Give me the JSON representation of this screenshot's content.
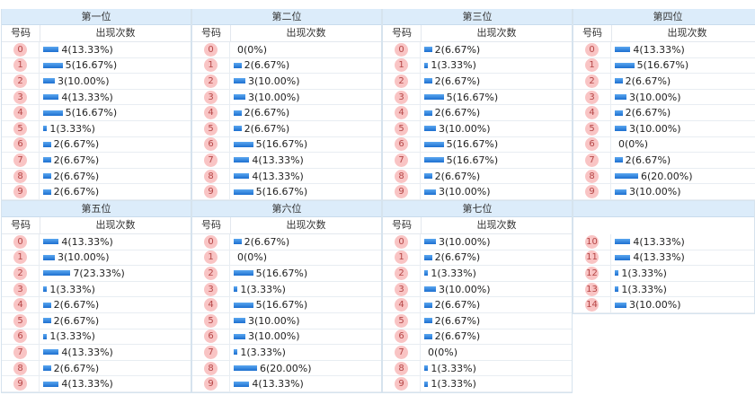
{
  "columns": {
    "number": "号码",
    "count": "出现次数"
  },
  "panels": [
    {
      "title": "第一位",
      "rows": [
        {
          "n": "0",
          "c": "4(13.33%)",
          "p": 13.33
        },
        {
          "n": "1",
          "c": "5(16.67%)",
          "p": 16.67
        },
        {
          "n": "2",
          "c": "3(10.00%)",
          "p": 10.0
        },
        {
          "n": "3",
          "c": "4(13.33%)",
          "p": 13.33
        },
        {
          "n": "4",
          "c": "5(16.67%)",
          "p": 16.67
        },
        {
          "n": "5",
          "c": "1(3.33%)",
          "p": 3.33
        },
        {
          "n": "6",
          "c": "2(6.67%)",
          "p": 6.67
        },
        {
          "n": "7",
          "c": "2(6.67%)",
          "p": 6.67
        },
        {
          "n": "8",
          "c": "2(6.67%)",
          "p": 6.67
        },
        {
          "n": "9",
          "c": "2(6.67%)",
          "p": 6.67
        }
      ]
    },
    {
      "title": "第二位",
      "rows": [
        {
          "n": "0",
          "c": "0(0%)",
          "p": 0
        },
        {
          "n": "1",
          "c": "2(6.67%)",
          "p": 6.67
        },
        {
          "n": "2",
          "c": "3(10.00%)",
          "p": 10.0
        },
        {
          "n": "3",
          "c": "3(10.00%)",
          "p": 10.0
        },
        {
          "n": "4",
          "c": "2(6.67%)",
          "p": 6.67
        },
        {
          "n": "5",
          "c": "2(6.67%)",
          "p": 6.67
        },
        {
          "n": "6",
          "c": "5(16.67%)",
          "p": 16.67
        },
        {
          "n": "7",
          "c": "4(13.33%)",
          "p": 13.33
        },
        {
          "n": "8",
          "c": "4(13.33%)",
          "p": 13.33
        },
        {
          "n": "9",
          "c": "5(16.67%)",
          "p": 16.67
        }
      ]
    },
    {
      "title": "第三位",
      "rows": [
        {
          "n": "0",
          "c": "2(6.67%)",
          "p": 6.67
        },
        {
          "n": "1",
          "c": "1(3.33%)",
          "p": 3.33
        },
        {
          "n": "2",
          "c": "2(6.67%)",
          "p": 6.67
        },
        {
          "n": "3",
          "c": "5(16.67%)",
          "p": 16.67
        },
        {
          "n": "4",
          "c": "2(6.67%)",
          "p": 6.67
        },
        {
          "n": "5",
          "c": "3(10.00%)",
          "p": 10.0
        },
        {
          "n": "6",
          "c": "5(16.67%)",
          "p": 16.67
        },
        {
          "n": "7",
          "c": "5(16.67%)",
          "p": 16.67
        },
        {
          "n": "8",
          "c": "2(6.67%)",
          "p": 6.67
        },
        {
          "n": "9",
          "c": "3(10.00%)",
          "p": 10.0
        }
      ]
    },
    {
      "title": "第四位",
      "rows": [
        {
          "n": "0",
          "c": "4(13.33%)",
          "p": 13.33
        },
        {
          "n": "1",
          "c": "5(16.67%)",
          "p": 16.67
        },
        {
          "n": "2",
          "c": "2(6.67%)",
          "p": 6.67
        },
        {
          "n": "3",
          "c": "3(10.00%)",
          "p": 10.0
        },
        {
          "n": "4",
          "c": "2(6.67%)",
          "p": 6.67
        },
        {
          "n": "5",
          "c": "3(10.00%)",
          "p": 10.0
        },
        {
          "n": "6",
          "c": "0(0%)",
          "p": 0
        },
        {
          "n": "7",
          "c": "2(6.67%)",
          "p": 6.67
        },
        {
          "n": "8",
          "c": "6(20.00%)",
          "p": 20.0
        },
        {
          "n": "9",
          "c": "3(10.00%)",
          "p": 10.0
        }
      ]
    },
    {
      "title": "第五位",
      "rows": [
        {
          "n": "0",
          "c": "4(13.33%)",
          "p": 13.33
        },
        {
          "n": "1",
          "c": "3(10.00%)",
          "p": 10.0
        },
        {
          "n": "2",
          "c": "7(23.33%)",
          "p": 23.33
        },
        {
          "n": "3",
          "c": "1(3.33%)",
          "p": 3.33
        },
        {
          "n": "4",
          "c": "2(6.67%)",
          "p": 6.67
        },
        {
          "n": "5",
          "c": "2(6.67%)",
          "p": 6.67
        },
        {
          "n": "6",
          "c": "1(3.33%)",
          "p": 3.33
        },
        {
          "n": "7",
          "c": "4(13.33%)",
          "p": 13.33
        },
        {
          "n": "8",
          "c": "2(6.67%)",
          "p": 6.67
        },
        {
          "n": "9",
          "c": "4(13.33%)",
          "p": 13.33
        }
      ]
    },
    {
      "title": "第六位",
      "rows": [
        {
          "n": "0",
          "c": "2(6.67%)",
          "p": 6.67
        },
        {
          "n": "1",
          "c": "0(0%)",
          "p": 0
        },
        {
          "n": "2",
          "c": "5(16.67%)",
          "p": 16.67
        },
        {
          "n": "3",
          "c": "1(3.33%)",
          "p": 3.33
        },
        {
          "n": "4",
          "c": "5(16.67%)",
          "p": 16.67
        },
        {
          "n": "5",
          "c": "3(10.00%)",
          "p": 10.0
        },
        {
          "n": "6",
          "c": "3(10.00%)",
          "p": 10.0
        },
        {
          "n": "7",
          "c": "1(3.33%)",
          "p": 3.33
        },
        {
          "n": "8",
          "c": "6(20.00%)",
          "p": 20.0
        },
        {
          "n": "9",
          "c": "4(13.33%)",
          "p": 13.33
        }
      ]
    },
    {
      "title": "第七位",
      "rows": [
        {
          "n": "0",
          "c": "3(10.00%)",
          "p": 10.0
        },
        {
          "n": "1",
          "c": "2(6.67%)",
          "p": 6.67
        },
        {
          "n": "2",
          "c": "1(3.33%)",
          "p": 3.33
        },
        {
          "n": "3",
          "c": "3(10.00%)",
          "p": 10.0
        },
        {
          "n": "4",
          "c": "2(6.67%)",
          "p": 6.67
        },
        {
          "n": "5",
          "c": "2(6.67%)",
          "p": 6.67
        },
        {
          "n": "6",
          "c": "2(6.67%)",
          "p": 6.67
        },
        {
          "n": "7",
          "c": "0(0%)",
          "p": 0
        },
        {
          "n": "8",
          "c": "1(3.33%)",
          "p": 3.33
        },
        {
          "n": "9",
          "c": "1(3.33%)",
          "p": 3.33
        }
      ]
    },
    {
      "title": "",
      "rows": [
        {
          "n": "10",
          "c": "4(13.33%)",
          "p": 13.33
        },
        {
          "n": "11",
          "c": "4(13.33%)",
          "p": 13.33
        },
        {
          "n": "12",
          "c": "1(3.33%)",
          "p": 3.33
        },
        {
          "n": "13",
          "c": "1(3.33%)",
          "p": 3.33
        },
        {
          "n": "14",
          "c": "3(10.00%)",
          "p": 10.0
        }
      ]
    }
  ]
}
